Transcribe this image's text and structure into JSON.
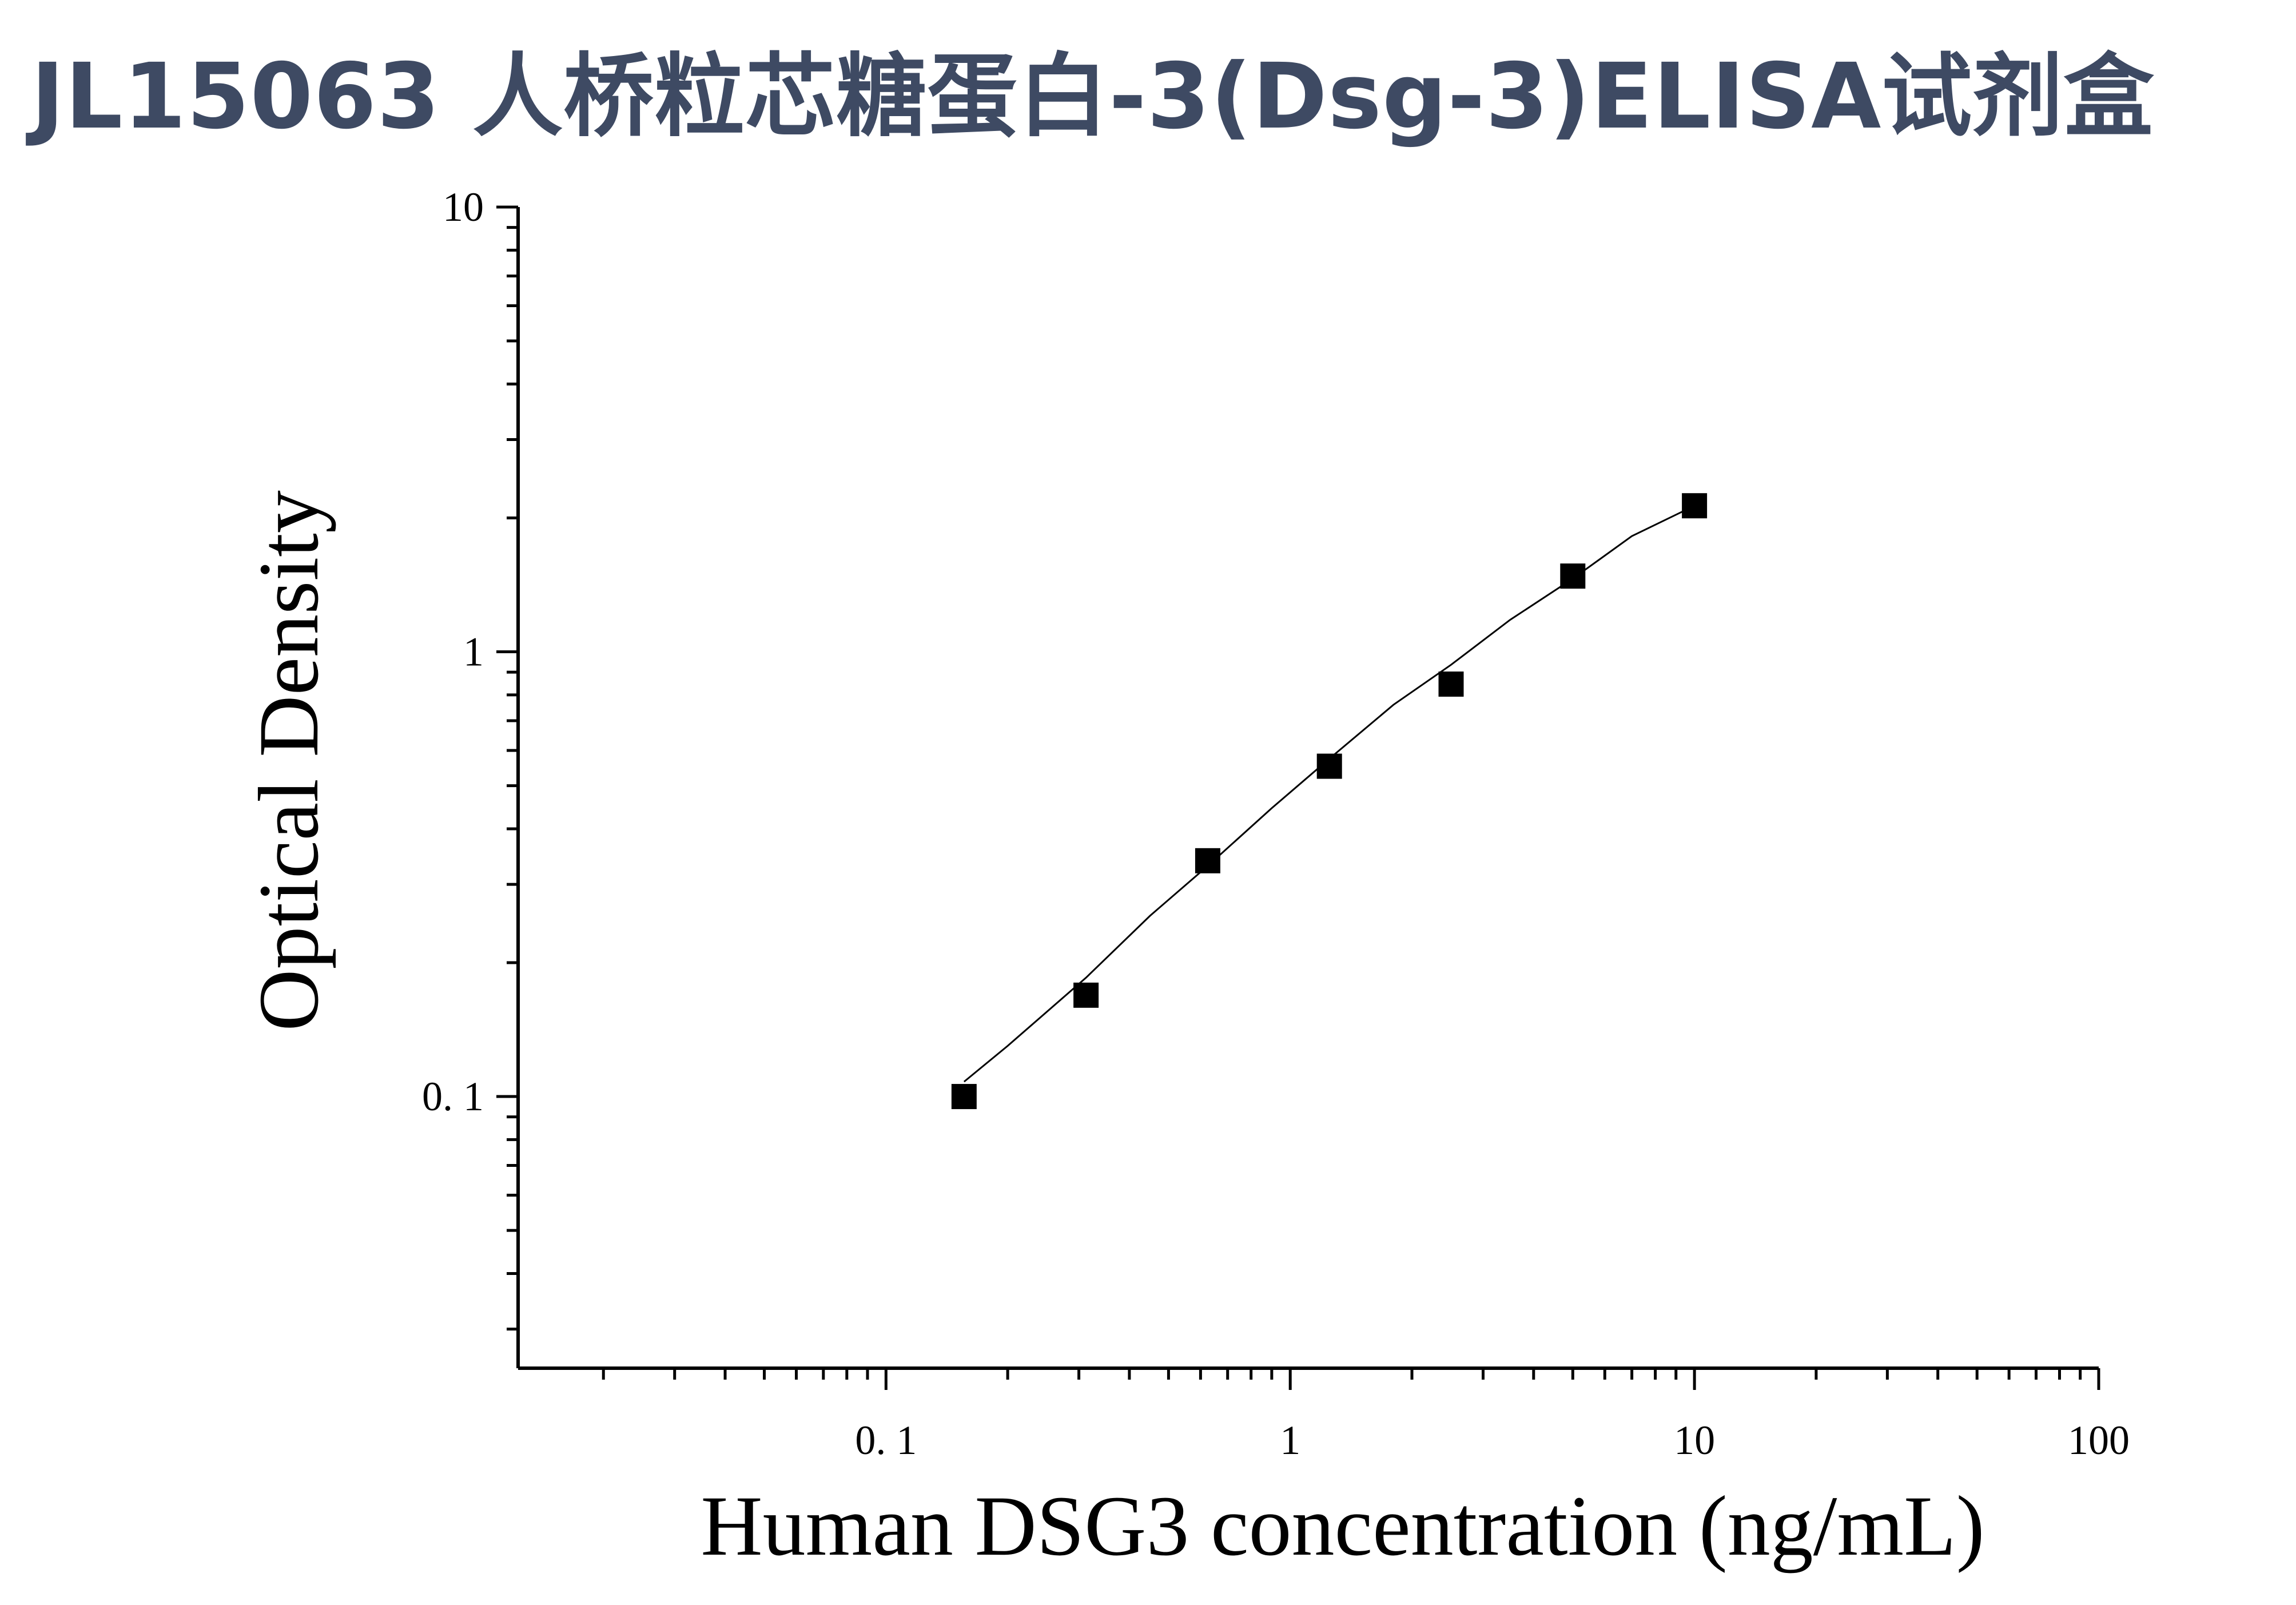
{
  "title": "JL15063 人桥粒芯糖蛋白-3(Dsg-3)ELISA试剂盒",
  "chart_data": {
    "type": "scatter",
    "title": "JL15063 人桥粒芯糖蛋白-3(Dsg-3)ELISA试剂盒",
    "xlabel": "Human DSG3 concentration (ng/mL)",
    "ylabel": "Optical Density",
    "x_scale": "log",
    "y_scale": "log",
    "xlim": [
      0.0123,
      100
    ],
    "ylim": [
      0.0245,
      10
    ],
    "x_ticks": [
      0.1,
      1,
      10,
      100
    ],
    "x_tick_labels": [
      "0. 1",
      "1",
      "10",
      "100"
    ],
    "y_ticks": [
      0.1,
      1,
      10
    ],
    "y_tick_labels": [
      "0. 1",
      "1",
      "10"
    ],
    "grid": false,
    "marker": "square",
    "marker_color": "#000000",
    "line_color": "#000000",
    "series": [
      {
        "x": [
          0.156,
          0.3125,
          0.625,
          1.25,
          2.5,
          5,
          10
        ],
        "y": [
          0.1,
          0.169,
          0.339,
          0.553,
          0.846,
          1.48,
          2.13
        ]
      }
    ],
    "fit_curve": {
      "x": [
        0.156,
        0.2,
        0.3125,
        0.45,
        0.625,
        0.9,
        1.25,
        1.8,
        2.5,
        3.5,
        5,
        7,
        10
      ],
      "y": [
        0.108,
        0.13,
        0.185,
        0.255,
        0.33,
        0.445,
        0.575,
        0.76,
        0.935,
        1.18,
        1.46,
        1.82,
        2.13
      ]
    }
  }
}
